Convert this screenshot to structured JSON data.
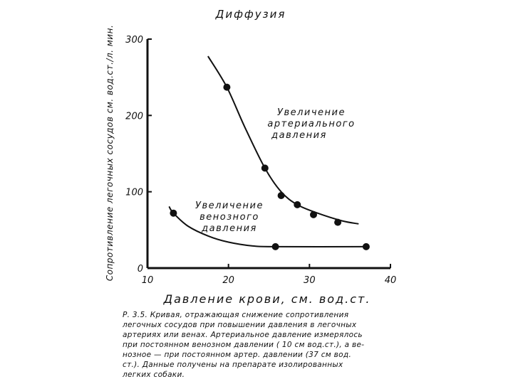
{
  "chart_data": {
    "type": "line",
    "title": "Диффузия",
    "xlabel": "Давление   крови,  см. вод.ст.",
    "ylabel": "Сопротивление легочных сосудов см. вод.ст./л. мин.",
    "xlim": [
      10,
      40
    ],
    "ylim": [
      0,
      300
    ],
    "x_ticks": [
      "10",
      "20",
      "30",
      "40"
    ],
    "y_ticks": [
      "0",
      "100",
      "200",
      "300"
    ],
    "grid": false,
    "series": [
      {
        "name": "Увеличение артериального давления",
        "points": [
          [
            19.8,
            237
          ],
          [
            24.5,
            131
          ],
          [
            26.5,
            95
          ],
          [
            28.5,
            83
          ],
          [
            30.5,
            70
          ],
          [
            33.5,
            60
          ]
        ],
        "curve": [
          [
            17.5,
            277
          ],
          [
            19.8,
            237
          ],
          [
            22,
            185
          ],
          [
            24.5,
            131
          ],
          [
            26.5,
            100
          ],
          [
            28.5,
            83
          ],
          [
            31,
            72
          ],
          [
            34,
            62
          ],
          [
            36,
            58
          ]
        ]
      },
      {
        "name": "Увеличение венозного давления",
        "points": [
          [
            13.2,
            72
          ],
          [
            25.8,
            28
          ],
          [
            37,
            28
          ]
        ],
        "curve": [
          [
            12.7,
            80
          ],
          [
            13.2,
            72
          ],
          [
            15,
            55
          ],
          [
            17.5,
            42
          ],
          [
            20,
            34
          ],
          [
            23,
            29
          ],
          [
            25.8,
            28
          ],
          [
            37,
            28
          ]
        ]
      }
    ],
    "annotations": [
      {
        "lines": [
          "Увеличение",
          "артериального",
          "давления"
        ]
      },
      {
        "lines": [
          "Увеличение",
          "венозного",
          "давления"
        ]
      }
    ]
  },
  "caption": {
    "lines": [
      "Р. 3.5. Кривая, отражающая снижение сопротивления",
      "легочных сосудов при повышении давления в легочных",
      "артериях или венах. Артериальное давление измерялось",
      "при постоянном венозном давлении ( 10 см вод.ст.), а ве-",
      "нозное — при постоянном артер.          давлении (37 см вод.",
      "ст.). Данные получены на препарате изолированных",
      "легких собаки."
    ]
  }
}
